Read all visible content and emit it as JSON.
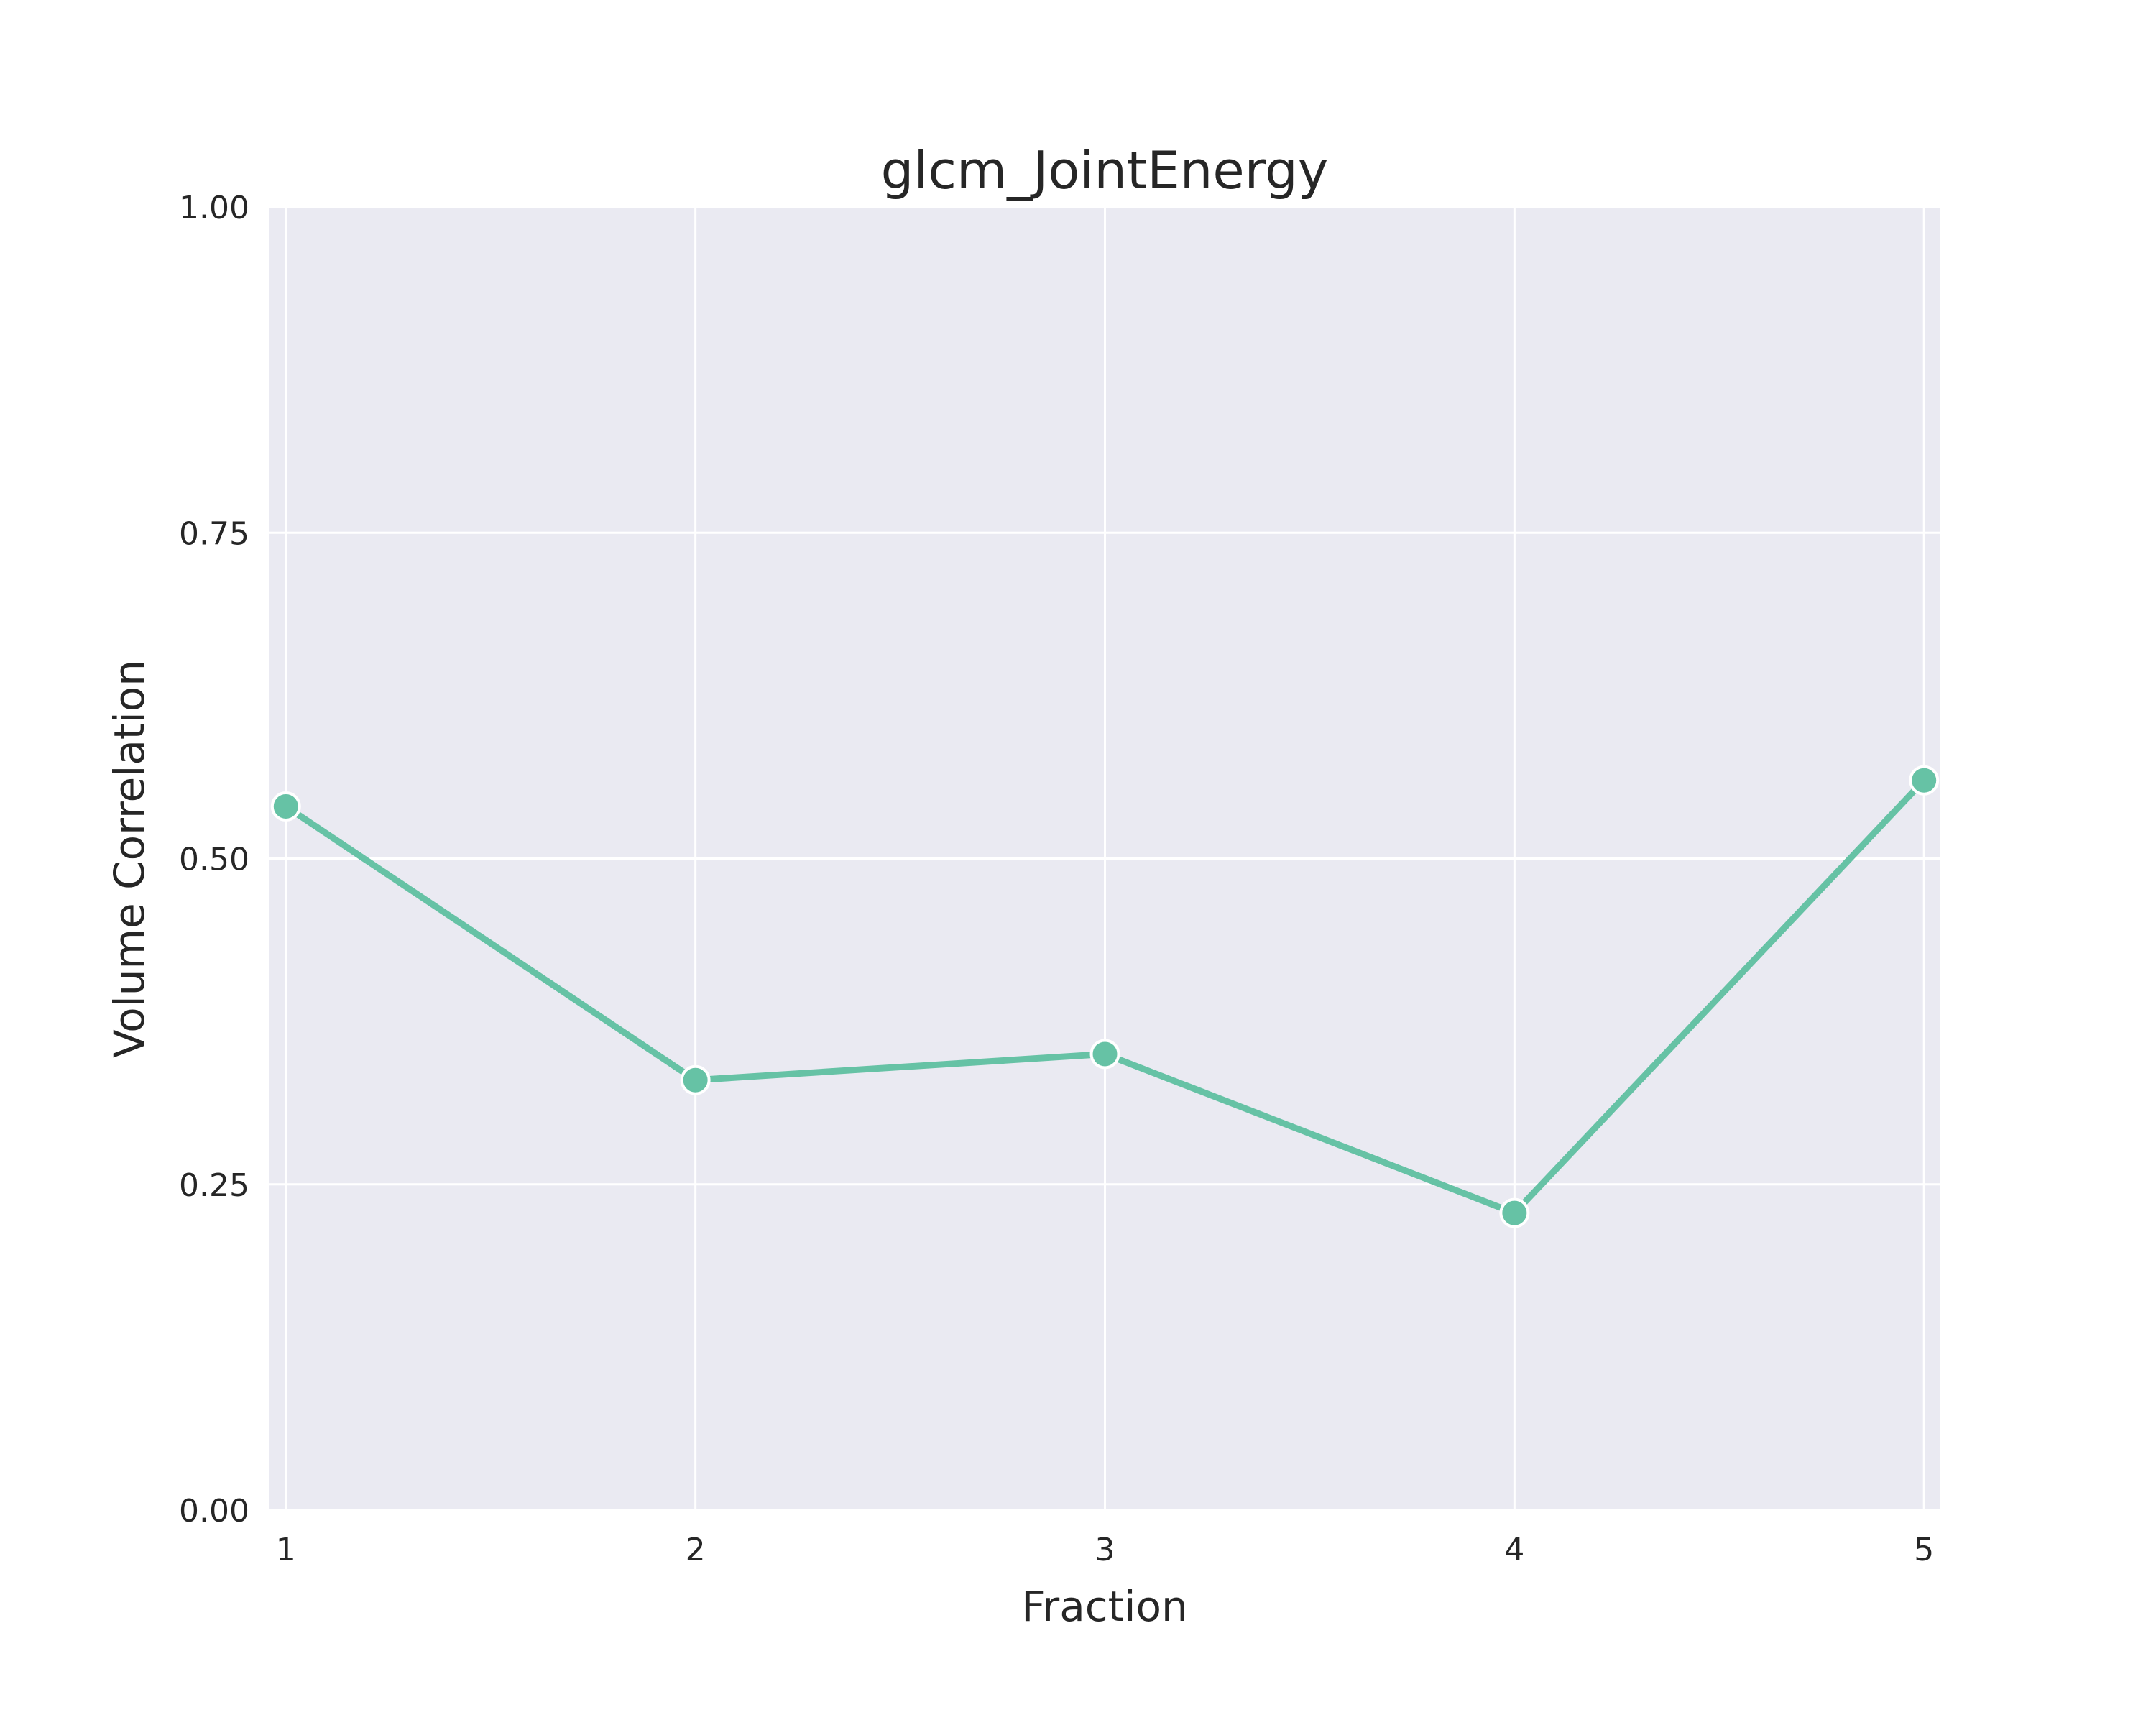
{
  "chart_data": {
    "type": "line",
    "title": "glcm_JointEnergy",
    "xlabel": "Fraction",
    "ylabel": "Volume Correlation",
    "x": [
      1,
      2,
      3,
      4,
      5
    ],
    "xticks": [
      "1",
      "2",
      "3",
      "4",
      "5"
    ],
    "yticks": [
      "0.00",
      "0.25",
      "0.50",
      "0.75",
      "1.00"
    ],
    "ytick_values": [
      0,
      0.25,
      0.5,
      0.75,
      1.0
    ],
    "ylim": [
      0,
      1.0
    ],
    "xlim": [
      0.96,
      5.04
    ],
    "grid": true,
    "series": [
      {
        "values": [
          0.54,
          0.33,
          0.35,
          0.228,
          0.56
        ]
      }
    ]
  },
  "colors": {
    "plot_background": "#eaeaf2",
    "grid": "#ffffff",
    "line": "#66c2a5",
    "marker_edge": "#ffffff"
  }
}
